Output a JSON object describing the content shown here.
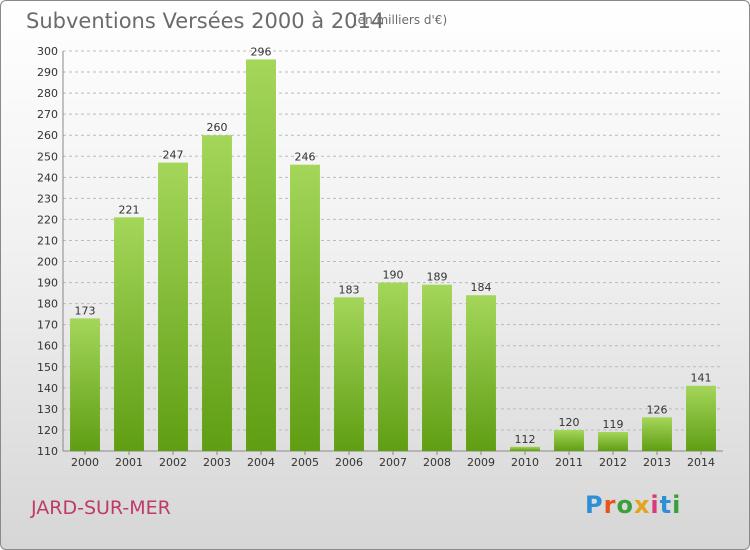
{
  "header": {
    "title": "Subventions Versées 2000 à 2014",
    "unit": "(en milliers d'€)"
  },
  "footer": {
    "commune": "JARD-SUR-MER",
    "logo": "Proxiti"
  },
  "colors": {
    "bar_top": "#a4d65a",
    "bar_bottom": "#5f9e13",
    "gridline": "#bbbbbb",
    "commune": "#c0396b"
  },
  "chart_data": {
    "type": "bar",
    "categories": [
      "2000",
      "2001",
      "2002",
      "2003",
      "2004",
      "2005",
      "2006",
      "2007",
      "2008",
      "2009",
      "2010",
      "2011",
      "2012",
      "2013",
      "2014"
    ],
    "values": [
      173,
      221,
      247,
      260,
      296,
      246,
      183,
      190,
      189,
      184,
      112,
      120,
      119,
      126,
      141
    ],
    "title": "Subventions Versées 2000 à 2014",
    "xlabel": "",
    "ylabel": "",
    "ylim": [
      110,
      300
    ],
    "yticks": [
      110,
      120,
      130,
      140,
      150,
      160,
      170,
      180,
      190,
      200,
      210,
      220,
      230,
      240,
      250,
      260,
      270,
      280,
      290,
      300
    ],
    "grid": true,
    "data_labels": true
  }
}
